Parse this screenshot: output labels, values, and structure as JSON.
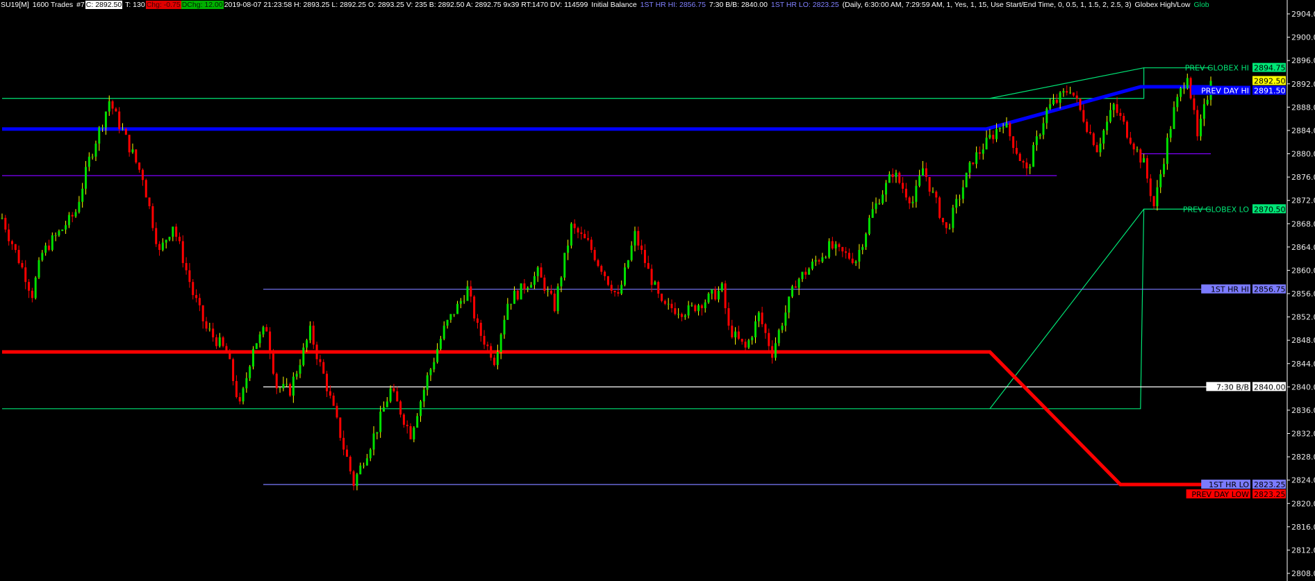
{
  "header": {
    "symbol": "SU19[M]",
    "trades": "1600 Trades",
    "chart_num": "#7",
    "close": "C: 2892.50",
    "ticks": "T: 130",
    "change": "Chg: -0.75",
    "daily_change": "DChg: 12.00",
    "bar_info": "2019-08-07 21:23:58 H: 2893.25 L: 2892.25 O: 2893.25 V: 235 B: 2892.50 A: 2892.75 9x39 RT:1470 DV: 114599",
    "study1_name": "Initial Balance",
    "ib_hi": "1ST HR HI: 2856.75",
    "bb": "7:30 B/B: 2840.00",
    "ib_lo": "1ST HR LO: 2823.25",
    "study1_params": "(Daily, 6:30:00 AM, 7:29:59 AM, 1, Yes, 1, 15, Use Start/End Time, 0, 0.5, 1, 1.5, 2, 2.5, 3)",
    "study2_name": "Globex High/Low",
    "study2_truncated": "Glob"
  },
  "colors": {
    "background": "#000000",
    "up_bar": "#00e000",
    "up_wick": "#ffff00",
    "down_bar": "#ff0000",
    "globex": "#00e676",
    "prev_day_hi": "#0000ff",
    "prev_day_low": "#ff0000",
    "ib": "#7b7bff",
    "prior_ib": "#8000ff",
    "bb": "#ffffff",
    "last_price": "#ffff00"
  },
  "chart_data": {
    "type": "candlestick",
    "ylim": [
      2806,
      2906
    ],
    "y_ticks": [
      2904,
      2900,
      2896,
      2892,
      2888,
      2884,
      2880,
      2876,
      2872,
      2868,
      2864,
      2860,
      2856,
      2852,
      2848,
      2844,
      2840,
      2836,
      2832,
      2828,
      2824,
      2820,
      2816,
      2812,
      2808
    ],
    "tick_labels": [
      "2904.00",
      "2900.00",
      "2896.00",
      "2892.00",
      "2888.00",
      "2884.00",
      "2880.00",
      "2876.00",
      "2872.00",
      "2868.00",
      "2864.00",
      "2860.00",
      "2856.00",
      "2852.00",
      "2848.00",
      "2844.00",
      "2840.00",
      "2836.00",
      "2832.00",
      "2828.00",
      "2824.00",
      "2820.00",
      "2816.00",
      "2812.00",
      "2808.00"
    ],
    "bar_count": 362,
    "approx_close_path": [
      [
        0,
        2868.9
      ],
      [
        9,
        2856
      ],
      [
        12,
        2863
      ],
      [
        22,
        2870
      ],
      [
        26,
        2879
      ],
      [
        32,
        2889
      ],
      [
        37,
        2882.5
      ],
      [
        42,
        2876
      ],
      [
        47,
        2863
      ],
      [
        51,
        2868
      ],
      [
        57,
        2856
      ],
      [
        61,
        2850
      ],
      [
        67,
        2846
      ],
      [
        71,
        2836.5
      ],
      [
        75,
        2847
      ],
      [
        79,
        2850
      ],
      [
        82,
        2840
      ],
      [
        86,
        2839.5
      ],
      [
        92,
        2849.5
      ],
      [
        97,
        2840
      ],
      [
        105,
        2823.5
      ],
      [
        111,
        2831.5
      ],
      [
        116,
        2839.5
      ],
      [
        122,
        2832
      ],
      [
        127,
        2841.5
      ],
      [
        132,
        2850
      ],
      [
        139,
        2856.75
      ],
      [
        142,
        2850
      ],
      [
        147,
        2844.75
      ],
      [
        151,
        2854.5
      ],
      [
        160,
        2859.5
      ],
      [
        165,
        2853.75
      ],
      [
        170,
        2867.5
      ],
      [
        175,
        2864.5
      ],
      [
        184,
        2855.25
      ],
      [
        189,
        2866
      ],
      [
        197,
        2853.75
      ],
      [
        205,
        2853
      ],
      [
        215,
        2856.75
      ],
      [
        217,
        2850
      ],
      [
        222,
        2846.5
      ],
      [
        226,
        2852.25
      ],
      [
        230,
        2846
      ],
      [
        237,
        2858
      ],
      [
        247,
        2864
      ],
      [
        255,
        2861.75
      ],
      [
        260,
        2870.25
      ],
      [
        266,
        2876.75
      ],
      [
        272,
        2871.75
      ],
      [
        275,
        2877.5
      ],
      [
        282,
        2866.75
      ],
      [
        290,
        2879
      ],
      [
        299,
        2885.5
      ],
      [
        306,
        2876.75
      ],
      [
        312,
        2887.5
      ],
      [
        319,
        2891.25
      ],
      [
        327,
        2881
      ],
      [
        332,
        2888.25
      ],
      [
        341,
        2878.25
      ],
      [
        344,
        2871
      ],
      [
        350,
        2887.5
      ],
      [
        354,
        2894
      ],
      [
        357,
        2882.5
      ],
      [
        361,
        2892.5
      ]
    ],
    "last_price": 2892.5,
    "levels": [
      {
        "name": "PREV GLOBEX HI",
        "value": "2894.75",
        "color_key": "globex",
        "text_label": true,
        "segments": [
          [
            [
              0,
              2889.5
            ],
            [
              295,
              2889.5
            ],
            [
              341,
              2889.5
            ],
            [
              341,
              2894.75
            ],
            [
              361,
              2894.75
            ]
          ],
          [
            [
              295,
              2889.5
            ],
            [
              341,
              2894.75
            ]
          ]
        ]
      },
      {
        "name": "PREV DAY HI",
        "value": "2891.50",
        "color_key": "prev_day_hi",
        "text_label": true,
        "thick": true,
        "segments": [
          [
            [
              0,
              2884.25
            ],
            [
              294,
              2884.25
            ],
            [
              340,
              2891.5
            ],
            [
              361,
              2891.5
            ]
          ]
        ]
      },
      {
        "name": "PREV GLOBEX LO",
        "value": "2870.50",
        "color_key": "globex",
        "text_label": true,
        "segments": [
          [
            [
              0,
              2836.25
            ],
            [
              295,
              2836.25
            ],
            [
              340,
              2836.25
            ],
            [
              341,
              2870.5
            ],
            [
              361,
              2870.5
            ]
          ],
          [
            [
              295,
              2836.25
            ],
            [
              341,
              2870.5
            ]
          ]
        ]
      },
      {
        "name": "1ST HR HI",
        "value": "2856.75",
        "color_key": "ib",
        "text_label": true,
        "segments": [
          [
            [
              78,
              2856.75
            ],
            [
              361,
              2856.75
            ]
          ]
        ]
      },
      {
        "name": "7:30 B/B",
        "value": "2840.00",
        "color_key": "bb",
        "text_label": true,
        "segments": [
          [
            [
              78,
              2840
            ],
            [
              361,
              2840
            ]
          ]
        ]
      },
      {
        "name": "1ST HR LO",
        "value": "2823.25",
        "color_key": "ib",
        "text_label": true,
        "segments": [
          [
            [
              78,
              2823.25
            ],
            [
              361,
              2823.25
            ]
          ]
        ]
      },
      {
        "name": "PREV DAY LOW",
        "value": "2823.25",
        "color_key": "prev_day_low",
        "text_label": true,
        "thick": true,
        "segments": [
          [
            [
              0,
              2846
            ],
            [
              295,
              2846
            ],
            [
              334,
              2823.25
            ],
            [
              361,
              2823.25
            ]
          ]
        ]
      },
      {
        "name": "",
        "value": "",
        "color_key": "prior_ib",
        "text_label": false,
        "segments": [
          [
            [
              0,
              2876.25
            ],
            [
              315,
              2876.25
            ]
          ],
          [
            [
              340,
              2880
            ],
            [
              361,
              2880
            ]
          ]
        ]
      }
    ]
  }
}
